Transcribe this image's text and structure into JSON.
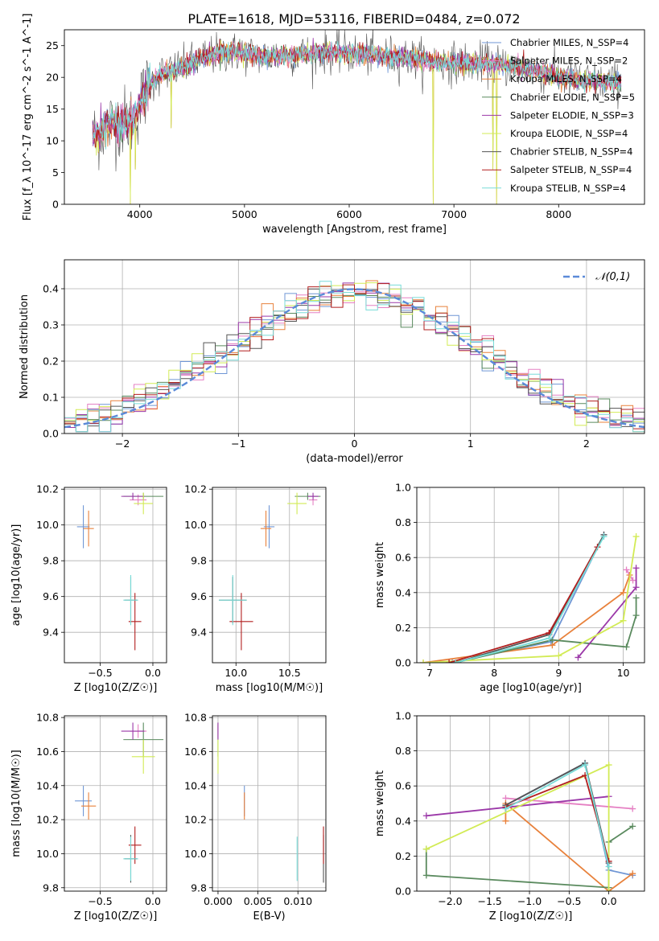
{
  "title": "PLATE=1618, MJD=53116, FIBERID=0484, z=0.072",
  "legend": [
    {
      "name": "Chabrier MILES, N_SSP=4",
      "color": "#6f96d5"
    },
    {
      "name": "Salpeter MILES, N_SSP=2",
      "color": "#e580c3"
    },
    {
      "name": "Kroupa MILES, N_SSP=4",
      "color": "#e8813b"
    },
    {
      "name": "Chabrier ELODIE, N_SSP=5",
      "color": "#5a8a5e"
    },
    {
      "name": "Salpeter ELODIE, N_SSP=3",
      "color": "#9b38a8"
    },
    {
      "name": "Kroupa ELODIE, N_SSP=4",
      "color": "#d2eb55"
    },
    {
      "name": "Chabrier STELIB, N_SSP=4",
      "color": "#555555"
    },
    {
      "name": "Salpeter STELIB, N_SSP=4",
      "color": "#b21f1f"
    },
    {
      "name": "Kroupa STELIB, N_SSP=4",
      "color": "#78dcd8"
    }
  ],
  "chart_data": [
    {
      "id": "spectrum",
      "type": "line",
      "xlabel": "wavelength [Angstrom, rest frame]",
      "ylabel": "Flux [f_λ 10^-17 erg cm^-2 s^-1 A^-1]",
      "xlim": [
        3280,
        8820
      ],
      "ylim": [
        0,
        27.5
      ],
      "xticks": [
        4000,
        5000,
        6000,
        7000,
        8000
      ],
      "yticks": [
        0,
        5,
        10,
        15,
        20,
        25
      ],
      "continuum": [
        [
          3550,
          10.5
        ],
        [
          3700,
          12.5
        ],
        [
          3850,
          13
        ],
        [
          3950,
          13.5
        ],
        [
          4000,
          16
        ],
        [
          4100,
          19
        ],
        [
          4200,
          20.5
        ],
        [
          4400,
          21.5
        ],
        [
          4600,
          23
        ],
        [
          4800,
          24
        ],
        [
          5000,
          23.8
        ],
        [
          5200,
          23.2
        ],
        [
          5400,
          23.6
        ],
        [
          5600,
          23.6
        ],
        [
          5800,
          24
        ],
        [
          6000,
          23.8
        ],
        [
          6200,
          23.5
        ],
        [
          6400,
          23.3
        ],
        [
          6600,
          23
        ],
        [
          6800,
          22.5
        ],
        [
          7000,
          22.3
        ],
        [
          7200,
          22.3
        ],
        [
          7400,
          22
        ],
        [
          7600,
          21.6
        ],
        [
          7800,
          21
        ],
        [
          8000,
          20
        ],
        [
          8200,
          19.5
        ],
        [
          8400,
          19.3
        ],
        [
          8600,
          19.2
        ],
        [
          8800,
          19
        ]
      ],
      "dips": [
        [
          3910,
          0
        ],
        [
          3960,
          5.5
        ],
        [
          4300,
          12
        ],
        [
          6800,
          0
        ],
        [
          7410,
          0
        ],
        [
          7370,
          5.5
        ]
      ],
      "grid": false,
      "legend_position": "upper right"
    },
    {
      "id": "residuals",
      "type": "step",
      "xlabel": "(data-model)/error",
      "ylabel": "Normed distribution",
      "xlim": [
        -2.5,
        2.5
      ],
      "ylim": [
        0,
        0.48
      ],
      "xticks": [
        -2,
        -1,
        0,
        1,
        2
      ],
      "yticks": [
        0,
        0.1,
        0.2,
        0.3,
        0.4
      ],
      "reference": {
        "name": "𝒩(0,1)",
        "mean": 0,
        "sigma": 1,
        "color": "#5b8ad8"
      },
      "grid": true,
      "legend_position": "upper right"
    },
    {
      "id": "age_vs_Z",
      "type": "errorbar",
      "xlabel": "Z [log10(Z/Z☉)]",
      "ylabel": "age  [log10(age/yr)]",
      "xlim": [
        -0.84,
        0.13
      ],
      "ylim": [
        9.23,
        10.21
      ],
      "xticks": [
        -0.5,
        0.0
      ],
      "yticks": [
        9.4,
        9.6,
        9.8,
        10.0,
        10.2
      ],
      "points": [
        {
          "s": 0,
          "x": -0.66,
          "y": 9.99,
          "xe": 0.06,
          "ye": 0.12
        },
        {
          "s": 1,
          "x": -0.14,
          "y": 10.14,
          "xe": 0.08,
          "ye": 0.03
        },
        {
          "s": 2,
          "x": -0.61,
          "y": 9.98,
          "xe": 0.05,
          "ye": 0.1
        },
        {
          "s": 3,
          "x": -0.09,
          "y": 10.16,
          "xe": 0.19,
          "ye": 0.02
        },
        {
          "s": 4,
          "x": -0.19,
          "y": 10.16,
          "xe": 0.11,
          "ye": 0.02
        },
        {
          "s": 5,
          "x": -0.09,
          "y": 10.12,
          "xe": 0.09,
          "ye": 0.06
        },
        {
          "s": 6,
          "x": -0.21,
          "y": 9.58,
          "xe": 0.06,
          "ye": 0.13
        },
        {
          "s": 7,
          "x": -0.17,
          "y": 9.46,
          "xe": 0.06,
          "ye": 0.16
        },
        {
          "s": 8,
          "x": -0.21,
          "y": 9.58,
          "xe": 0.07,
          "ye": 0.14
        }
      ]
    },
    {
      "id": "age_vs_mass",
      "type": "errorbar",
      "xlabel": "mass [log10(M/M☉)]",
      "ylabel": "",
      "xlim": [
        9.78,
        10.84
      ],
      "ylim": [
        9.23,
        10.21
      ],
      "xticks": [
        10.0,
        10.5
      ],
      "yticks": [
        9.4,
        9.6,
        9.8,
        10.0,
        10.2
      ],
      "points": [
        {
          "s": 0,
          "x": 10.31,
          "y": 9.99,
          "xe": 0.05,
          "ye": 0.12
        },
        {
          "s": 1,
          "x": 10.72,
          "y": 10.14,
          "xe": 0.04,
          "ye": 0.03
        },
        {
          "s": 2,
          "x": 10.28,
          "y": 9.98,
          "xe": 0.05,
          "ye": 0.1
        },
        {
          "s": 3,
          "x": 10.67,
          "y": 10.16,
          "xe": 0.12,
          "ye": 0.02
        },
        {
          "s": 4,
          "x": 10.72,
          "y": 10.16,
          "xe": 0.05,
          "ye": 0.02
        },
        {
          "s": 5,
          "x": 10.57,
          "y": 10.12,
          "xe": 0.09,
          "ye": 0.06
        },
        {
          "s": 6,
          "x": 9.97,
          "y": 9.58,
          "xe": 0.13,
          "ye": 0.13
        },
        {
          "s": 7,
          "x": 10.05,
          "y": 9.46,
          "xe": 0.11,
          "ye": 0.16
        },
        {
          "s": 8,
          "x": 9.97,
          "y": 9.58,
          "xe": 0.13,
          "ye": 0.14
        }
      ]
    },
    {
      "id": "weight_vs_age",
      "type": "line",
      "xlabel": "age  [log10(age/yr)]",
      "ylabel": "mass weight",
      "xlim": [
        6.8,
        10.33
      ],
      "ylim": [
        0,
        1
      ],
      "xticks": [
        7,
        8,
        9,
        10
      ],
      "yticks": [
        0,
        0.2,
        0.4,
        0.6,
        0.8,
        1.0
      ],
      "series": [
        {
          "s": 0,
          "x": [
            7.35,
            8.88,
            9.7
          ],
          "y": [
            0.0,
            0.12,
            0.73
          ]
        },
        {
          "s": 1,
          "x": [
            10.05,
            10.15
          ],
          "y": [
            0.53,
            0.47
          ]
        },
        {
          "s": 2,
          "x": [
            6.9,
            8.9,
            10.0,
            10.1
          ],
          "y": [
            0.0,
            0.1,
            0.4,
            0.5
          ]
        },
        {
          "s": 3,
          "x": [
            7.4,
            8.9,
            10.05,
            10.2,
            10.2
          ],
          "y": [
            0.0,
            0.13,
            0.09,
            0.27,
            0.37
          ]
        },
        {
          "s": 4,
          "x": [
            9.3,
            10.2,
            10.2
          ],
          "y": [
            0.03,
            0.43,
            0.54
          ]
        },
        {
          "s": 5,
          "x": [
            6.9,
            9.0,
            10.0,
            10.2
          ],
          "y": [
            0.0,
            0.04,
            0.24,
            0.72
          ]
        },
        {
          "s": 6,
          "x": [
            7.4,
            8.85,
            9.7
          ],
          "y": [
            0.0,
            0.16,
            0.73
          ]
        },
        {
          "s": 7,
          "x": [
            7.3,
            8.85,
            9.6
          ],
          "y": [
            0.0,
            0.17,
            0.66
          ]
        },
        {
          "s": 8,
          "x": [
            7.4,
            8.85,
            9.7
          ],
          "y": [
            0.0,
            0.14,
            0.72
          ]
        }
      ]
    },
    {
      "id": "mass_vs_Z",
      "type": "errorbar",
      "xlabel": "Z [log10(Z/Z☉)]",
      "ylabel": "mass [log10(M/M☉)]",
      "xlim": [
        -0.84,
        0.13
      ],
      "ylim": [
        9.78,
        10.81
      ],
      "xticks": [
        -0.5,
        0.0
      ],
      "yticks": [
        9.8,
        10.0,
        10.2,
        10.4,
        10.6,
        10.8
      ],
      "points": [
        {
          "s": 0,
          "x": -0.66,
          "y": 10.31,
          "xe": 0.08,
          "ye": 0.09
        },
        {
          "s": 1,
          "x": -0.14,
          "y": 10.72,
          "xe": 0.08,
          "ye": 0.04
        },
        {
          "s": 2,
          "x": -0.61,
          "y": 10.28,
          "xe": 0.07,
          "ye": 0.08
        },
        {
          "s": 3,
          "x": -0.09,
          "y": 10.67,
          "xe": 0.19,
          "ye": 0.1
        },
        {
          "s": 4,
          "x": -0.19,
          "y": 10.72,
          "xe": 0.11,
          "ye": 0.05
        },
        {
          "s": 5,
          "x": -0.09,
          "y": 10.57,
          "xe": 0.11,
          "ye": 0.1
        },
        {
          "s": 6,
          "x": -0.21,
          "y": 9.97,
          "xe": 0.06,
          "ye": 0.14
        },
        {
          "s": 7,
          "x": -0.17,
          "y": 10.05,
          "xe": 0.06,
          "ye": 0.11
        },
        {
          "s": 8,
          "x": -0.21,
          "y": 9.97,
          "xe": 0.07,
          "ye": 0.13
        }
      ]
    },
    {
      "id": "mass_vs_EBV",
      "type": "errorbar",
      "xlabel": "E(B-V)",
      "ylabel": "",
      "xlim": [
        -0.0007,
        0.0135
      ],
      "ylim": [
        9.78,
        10.81
      ],
      "xticks": [
        0.0,
        0.005,
        0.01
      ],
      "yticks": [
        9.8,
        10.0,
        10.2,
        10.4,
        10.6,
        10.8
      ],
      "points": [
        {
          "s": 0,
          "x": 0.0033,
          "y": 10.31,
          "xe": 0,
          "ye": 0.09
        },
        {
          "s": 1,
          "x": 0.0,
          "y": 10.72,
          "xe": 0,
          "ye": 0.04
        },
        {
          "s": 2,
          "x": 0.0033,
          "y": 10.28,
          "xe": 0,
          "ye": 0.08
        },
        {
          "s": 3,
          "x": 0.0,
          "y": 10.67,
          "xe": 0,
          "ye": 0.1
        },
        {
          "s": 4,
          "x": 0.0,
          "y": 10.72,
          "xe": 0,
          "ye": 0.05
        },
        {
          "s": 5,
          "x": 0.0,
          "y": 10.57,
          "xe": 0,
          "ye": 0.1
        },
        {
          "s": 6,
          "x": 0.0132,
          "y": 9.97,
          "xe": 0,
          "ye": 0.14
        },
        {
          "s": 7,
          "x": 0.0132,
          "y": 10.05,
          "xe": 0,
          "ye": 0.11
        },
        {
          "s": 8,
          "x": 0.0099,
          "y": 9.97,
          "xe": 0,
          "ye": 0.13
        }
      ]
    },
    {
      "id": "weight_vs_Z",
      "type": "line",
      "xlabel": "Z [log10(Z/Z☉)]",
      "ylabel": "mass weight",
      "xlim": [
        -2.42,
        0.45
      ],
      "ylim": [
        0,
        1
      ],
      "xticks": [
        -2.0,
        -1.5,
        -1.0,
        -0.5,
        0.0
      ],
      "yticks": [
        0,
        0.2,
        0.4,
        0.6,
        0.8,
        1.0
      ],
      "series": [
        {
          "s": 0,
          "x": [
            -1.3,
            -0.3,
            0.0,
            0.3
          ],
          "y": [
            0.49,
            0.73,
            0.12,
            0.09
          ]
        },
        {
          "s": 1,
          "x": [
            -1.3,
            0.3
          ],
          "y": [
            0.53,
            0.47
          ]
        },
        {
          "s": 2,
          "x": [
            -1.3,
            -1.3,
            0.0,
            0.3
          ],
          "y": [
            0.4,
            0.5,
            0.0,
            0.1
          ]
        },
        {
          "s": 3,
          "x": [
            -2.3,
            -2.3,
            0.0,
            0.0,
            0.3
          ],
          "y": [
            0.24,
            0.09,
            0.02,
            0.28,
            0.37
          ]
        },
        {
          "s": 4,
          "x": [
            -2.3,
            0.0
          ],
          "y": [
            0.43,
            0.54
          ]
        },
        {
          "s": 5,
          "x": [
            -2.3,
            0.0,
            0.0
          ],
          "y": [
            0.24,
            0.72,
            0.0
          ]
        },
        {
          "s": 6,
          "x": [
            -1.3,
            -0.3,
            0.0
          ],
          "y": [
            0.49,
            0.73,
            0.16
          ]
        },
        {
          "s": 7,
          "x": [
            -1.3,
            -0.3,
            0.0
          ],
          "y": [
            0.48,
            0.66,
            0.17
          ]
        },
        {
          "s": 8,
          "x": [
            -1.3,
            -0.3,
            0.0
          ],
          "y": [
            0.47,
            0.72,
            0.14
          ]
        }
      ]
    }
  ]
}
